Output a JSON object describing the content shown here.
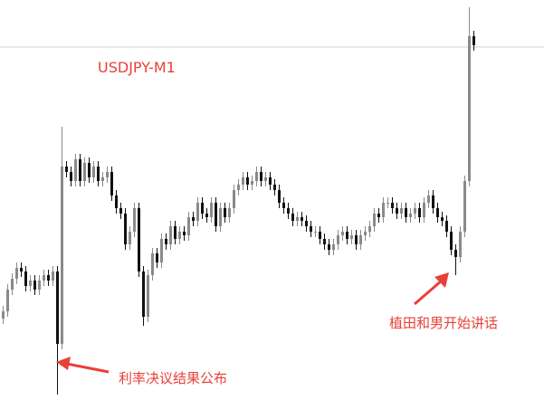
{
  "chart_data": {
    "type": "candlestick",
    "title": "USDJPY-M1",
    "xlabel": "",
    "ylabel": "",
    "ylim": [
      0,
      110
    ],
    "grid": false,
    "reference_line": 97,
    "colors": {
      "bull": "#8a8a8a",
      "bear": "#111111",
      "reference_line": "#d0d0d0",
      "annotation": "#e8403a"
    },
    "closes": [
      24,
      30,
      33,
      36,
      35,
      31,
      32.5,
      30,
      32.5,
      34,
      32.5,
      35,
      15,
      64,
      62.5,
      60,
      66,
      60,
      65,
      61,
      64,
      60,
      61,
      62.5,
      56,
      52.5,
      51,
      42.5,
      46,
      52.5,
      35,
      22.5,
      34,
      40,
      37.5,
      44,
      42.5,
      47.5,
      44,
      46,
      45,
      50,
      49,
      54,
      51,
      50,
      54,
      47.5,
      52.5,
      50,
      52.5,
      57.5,
      59,
      61,
      59,
      60,
      62.5,
      60,
      61,
      59,
      57.5,
      54,
      52.5,
      51,
      49,
      50,
      49,
      47.5,
      46,
      46,
      44,
      42.5,
      41,
      42.5,
      45,
      46,
      44,
      45,
      42.5,
      45,
      46,
      47.5,
      51,
      50,
      54,
      54,
      52.5,
      51,
      52.5,
      50,
      51,
      52.5,
      50,
      54,
      56,
      52.5,
      50,
      49,
      46,
      41,
      39,
      46,
      60,
      100,
      97.5
    ],
    "wick_extremes": [
      {
        "index": 12,
        "low": 1
      },
      {
        "index": 13,
        "high": 75
      },
      {
        "index": 31,
        "low": 20
      },
      {
        "index": 100,
        "low": 34
      },
      {
        "index": 103,
        "high": 108
      }
    ],
    "annotations": [
      {
        "text": "利率决议结果公布",
        "candle_index": 12
      },
      {
        "text": "植田和男开始讲话",
        "candle_index": 100
      }
    ]
  }
}
